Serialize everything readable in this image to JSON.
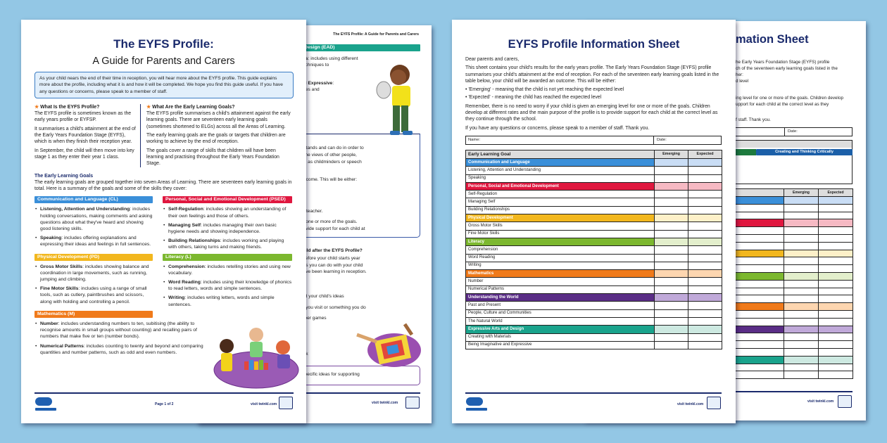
{
  "colors": {
    "background": "#93c7e5",
    "navy": "#1a2a6c",
    "cl": "#3a8fd9",
    "psed": "#e0173f",
    "pd": "#f2b71e",
    "l": "#7cb82f",
    "m": "#f07a1a",
    "utw": "#5a2d86",
    "ead": "#1aa38c"
  },
  "guide_page1": {
    "title": "The EYFS Profile:",
    "subtitle": "A Guide for Parents and Carers",
    "intro": "As your child nears the end of their time in reception, you will hear more about the EYFS profile. This guide explains more about the profile, including what it is and how it will be completed. We hope you find this guide useful. If you have any questions or concerns, please speak to a member of staff.",
    "col1": {
      "icon": "star-icon",
      "heading": "What Is the EYFS Profile?",
      "paras": [
        "The EYFS profile is sometimes known as the early years profile or EYFSP.",
        "It summarises a child's attainment at the end of the Early Years Foundation Stage (EYFS), which is when they finish their reception year.",
        "In September, the child will then move into key stage 1 as they enter their year 1 class."
      ]
    },
    "col2": {
      "icon": "star-icon",
      "heading": "What Are the Early Learning Goals?",
      "paras": [
        "The EYFS profile summarises a child's attainment against the early learning goals. There are seventeen early learning goals (sometimes shortened to ELGs) across all the Areas of Learning.",
        "The early learning goals are the goals or targets that children are working to achieve by the end of reception.",
        "The goals cover a range of skills that children will have been learning and practising throughout the Early Years Foundation Stage."
      ]
    },
    "elg_heading": "The Early Learning Goals",
    "elg_intro": "The early learning goals are grouped together into seven Areas of Learning. There are seventeen early learning goals in total. Here is a summary of the goals and some of the skills they cover:",
    "areas": [
      {
        "title": "Communication and Language (CL)",
        "items": [
          {
            "term": "Listening, Attention and Understanding",
            "desc": ": includes holding conversations, making comments and asking questions about what they've heard and showing good listening skills."
          },
          {
            "term": "Speaking",
            "desc": ": includes offering explanations and expressing their ideas and feelings in full sentences."
          }
        ]
      },
      {
        "title": "Personal, Social and Emotional Development (PSED)",
        "items": [
          {
            "term": "Self-Regulation",
            "desc": ": includes showing an understanding of their own feelings and those of others."
          },
          {
            "term": "Managing Self",
            "desc": ": includes managing their own basic hygiene needs and showing independence."
          },
          {
            "term": "Building Relationships",
            "desc": ": includes working and playing with others, taking turns and making friends."
          }
        ]
      },
      {
        "title": "Physical Development (PD)",
        "items": [
          {
            "term": "Gross Motor Skills",
            "desc": ": includes showing balance and coordination in large movements, such as running, jumping and climbing."
          },
          {
            "term": "Fine Motor Skills",
            "desc": ": includes using a range of small tools, such as cutlery, paintbrushes and scissors, along with holding and controlling a pencil."
          }
        ]
      },
      {
        "title": "Literacy (L)",
        "items": [
          {
            "term": "Comprehension",
            "desc": ": includes retelling stories and using new vocabulary."
          },
          {
            "term": "Word Reading",
            "desc": ": includes using their knowledge of phonics to read letters, words and simple sentences."
          },
          {
            "term": "Writing",
            "desc": ": includes writing letters, words and simple sentences."
          }
        ]
      },
      {
        "title": "Mathematics (M)",
        "items": [
          {
            "term": "Number",
            "desc": ": includes understanding numbers to ten, subitising (the ability to recognise amounts in small groups without counting) and recalling pairs of numbers that make five or ten (number bonds)."
          },
          {
            "term": "Numerical Patterns",
            "desc": ": includes counting to twenty and beyond and comparing quantities and number patterns, such as odd and even numbers."
          }
        ]
      }
    ],
    "footer": {
      "logo": "twinkl foundation",
      "page": "Page 1 of 2",
      "url": "visit twinkl.com"
    }
  },
  "guide_page2": {
    "header": "The EYFS Profile: A Guide for Parents and Carers",
    "ead_band": "ssive Arts and Design (EAD)",
    "lines": [
      {
        "text": "ting with Materials",
        "bold": true,
        "rest": ": includes using different"
      },
      {
        "text": "erials, tools and techniques to"
      },
      {
        "text": "esent their ideas."
      },
      {
        "text": "g Imaginative and Expressive",
        "bold": true,
        "rest": ":"
      },
      {
        "text": "udes creating stories and"
      },
      {
        "text": "ing rhymes, songs"
      },
      {
        "text": "poems."
      },
      {
        "text": "hild knows, understands and can do in order to"
      },
      {
        "text": "take into account the views of other people,"
      },
      {
        "text": "her agencies, such as childminders or speech"
      },
      {
        "text": "be awarded an outcome. This will be either:"
      },
      {
        "text": "xpected level"
      },
      {
        "text": "el"
      },
      {
        "text": "rs and their year 1 teacher."
      },
      {
        "text": "emerging level for one or more of the goals."
      },
      {
        "text": " the profile is to provide support for each child at"
      },
      {
        "text": "Can I Help My Child after the EYFS Profile?",
        "bold": true
      },
      {
        "text": "ummer holidays, before your child starts year"
      },
      {
        "text": "e plenty of activities you can do with your child"
      },
      {
        "text": "n the skills they have been learning in reception."
      },
      {
        "text": "lude:"
      },
      {
        "text": "stories together"
      },
      {
        "text": "about activities and your child's ideas"
      },
      {
        "text": "about somewhere you visit or something you do"
      },
      {
        "text": "counting and number games"
      },
      {
        "text": "activities, such as"
      },
      {
        "text": "and drawing"
      },
      {
        "text": "g the natural world"
      },
      {
        "text": "ng a garden or park"
      },
      {
        "text": "ctivities or some specific ideas for supporting"
      }
    ],
    "footer": {
      "url": "visit twinkl.com"
    }
  },
  "info_sheet": {
    "title": "EYFS Profile Information Sheet",
    "greeting": "Dear parents and carers,",
    "intro": "This sheet contains your child's results for the early years profile. The Early Years Foundation Stage (EYFS) profile summarises your child's attainment at the end of reception. For each of the seventeen early learning goals listed in the table below, your child will be awarded an outcome. This will be either:",
    "bullets": [
      "'Emerging' - meaning that the child is not yet reaching the expected level",
      "'Expected' - meaning the child has reached the expected level"
    ],
    "remember": "Remember, there is no need to worry if your child is given an emerging level for one or more of the goals. Children develop at different rates and the main purpose of the profile is to provide support for each child at the correct level as they continue through the school.",
    "contact": "If you have any questions or concerns, please speak to a member of staff. Thank you.",
    "name_label": "Name:",
    "date_label": "Date:",
    "table": {
      "headers": [
        "Early Learning Goal",
        "Emerging",
        "Expected"
      ],
      "rows": [
        {
          "area": true,
          "label": "Communication and Language",
          "color": "#3a8fd9",
          "tint": "#c9ddf5"
        },
        {
          "label": "Listening, Attention and Understanding"
        },
        {
          "label": "Speaking"
        },
        {
          "area": true,
          "label": "Personal, Social and Emotional Development",
          "color": "#e0173f",
          "tint": "#f6b9c3"
        },
        {
          "label": "Self-Regulation"
        },
        {
          "label": "Managing Self"
        },
        {
          "label": "Building Relationships"
        },
        {
          "area": true,
          "label": "Physical Development",
          "color": "#f2b71e",
          "tint": "#fdf0c8"
        },
        {
          "label": "Gross Motor Skills"
        },
        {
          "label": "Fine Motor Skills"
        },
        {
          "area": true,
          "label": "Literacy",
          "color": "#7cb82f",
          "tint": "#e3efcc"
        },
        {
          "label": "Comprehension"
        },
        {
          "label": "Word Reading"
        },
        {
          "label": "Writing"
        },
        {
          "area": true,
          "label": "Mathematics",
          "color": "#f07a1a",
          "tint": "#fdd6b0"
        },
        {
          "label": "Number"
        },
        {
          "label": "Numerical Patterns"
        },
        {
          "area": true,
          "label": "Understanding the World",
          "color": "#5a2d86",
          "tint": "#c0a9d9"
        },
        {
          "label": "Past and Present"
        },
        {
          "label": "People, Culture and Communities"
        },
        {
          "label": "The Natural World"
        },
        {
          "area": true,
          "label": "Expressive Arts and Design",
          "color": "#1aa38c",
          "tint": "#cde9e1"
        },
        {
          "label": "Creating with Materials"
        },
        {
          "label": "Being Imaginative and Expressive"
        }
      ]
    },
    "footer": {
      "logo": "twinkl foundation",
      "url": "visit twinkl.com"
    }
  },
  "info_sheet_back": {
    "title_fragment": "mation Sheet",
    "lines": [
      "he Early Years Foundation Stage (EYFS) profile",
      "ch of the seventeen early learning goals listed in the",
      "her:",
      "d level",
      "ing level for one or more of the goals. Children develop",
      "upport for each child at the correct level as they",
      "f staff. Thank you."
    ],
    "date_label": "Date:",
    "band_label": "Creating and Thinking Critically",
    "headers": [
      "Emerging",
      "Expected"
    ],
    "footer": {
      "url": "visit twinkl.com"
    }
  }
}
